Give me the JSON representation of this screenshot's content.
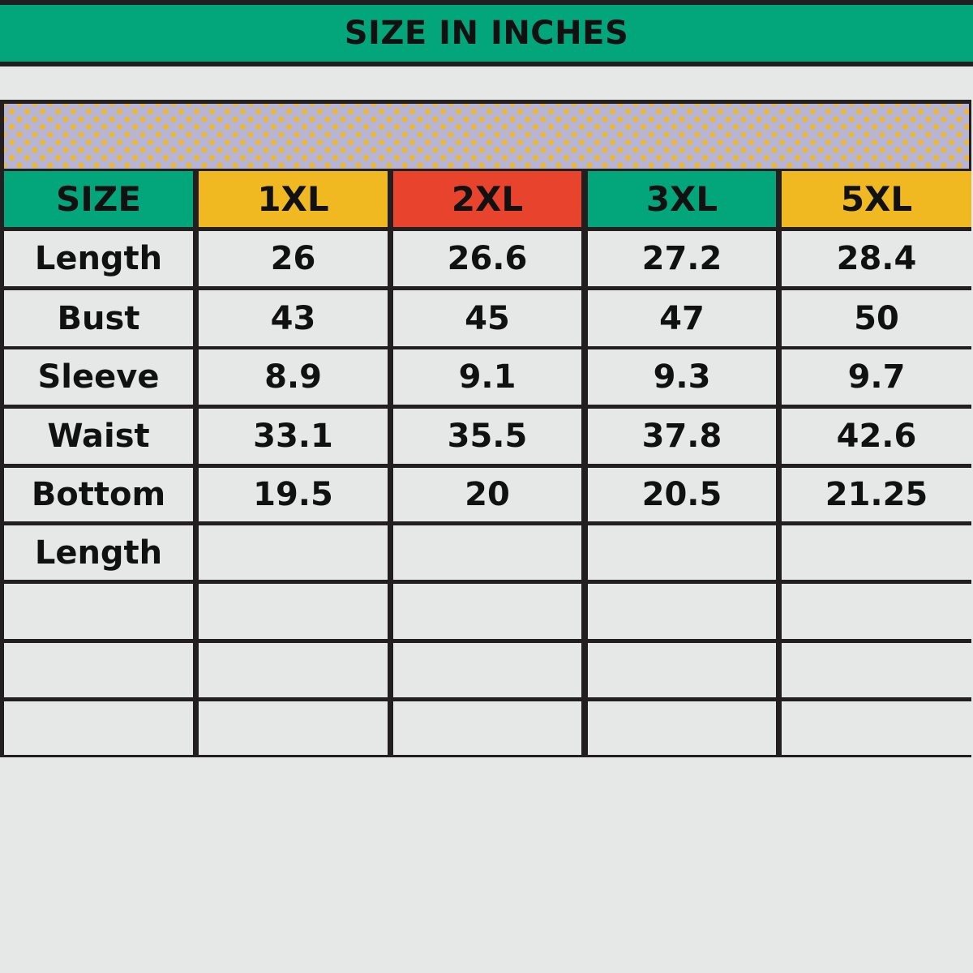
{
  "title": "SIZE IN INCHES",
  "colors": {
    "green": "#03a57a",
    "yellow": "#f0b922",
    "red": "#e8432d",
    "pattern_bg": "#b7b4d4",
    "border": "#231f20"
  },
  "header": [
    {
      "label": "SIZE",
      "color": "#03a57a"
    },
    {
      "label": "1XL",
      "color": "#f0b922"
    },
    {
      "label": "2XL",
      "color": "#e8432d"
    },
    {
      "label": "3XL",
      "color": "#03a57a"
    },
    {
      "label": "5XL",
      "color": "#f0b922"
    }
  ],
  "rows": [
    {
      "label": "Length",
      "values": [
        "26",
        "26.6",
        "27.2",
        "28.4"
      ]
    },
    {
      "label": "Bust",
      "values": [
        "43",
        "45",
        "47",
        "50"
      ]
    },
    {
      "label": "Sleeve",
      "values": [
        "8.9",
        "9.1",
        "9.3",
        "9.7"
      ]
    },
    {
      "label": "Waist",
      "values": [
        "33.1",
        "35.5",
        "37.8",
        "42.6"
      ]
    },
    {
      "label": "Bottom",
      "values": [
        "19.5",
        "20",
        "20.5",
        "21.25"
      ]
    },
    {
      "label": "Length",
      "values": [
        "",
        "",
        "",
        ""
      ]
    },
    {
      "label": "",
      "values": [
        "",
        "",
        "",
        ""
      ]
    },
    {
      "label": "",
      "values": [
        "",
        "",
        "",
        ""
      ]
    },
    {
      "label": "",
      "values": [
        "",
        "",
        "",
        ""
      ]
    }
  ]
}
